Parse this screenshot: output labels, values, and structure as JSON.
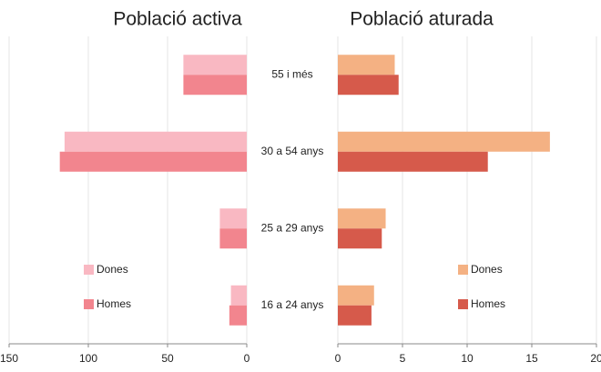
{
  "chart_data": [
    {
      "type": "bar",
      "orientation": "horizontal",
      "title": "Població activa",
      "reversed": true,
      "categories": [
        "55 i més",
        "30 a 54 anys",
        "25 a 29 anys",
        "16 a 24 anys"
      ],
      "series": [
        {
          "name": "Dones",
          "color": "#f9b8c2",
          "values": [
            40,
            115,
            17,
            10
          ]
        },
        {
          "name": "Homes",
          "color": "#f2858e",
          "values": [
            40,
            118,
            17,
            11
          ]
        }
      ],
      "xlim": [
        0,
        150
      ],
      "xticks": [
        150,
        100,
        50,
        0
      ],
      "grid": true,
      "legend": "lower left"
    },
    {
      "type": "bar",
      "orientation": "horizontal",
      "title": "Població aturada",
      "series": [
        {
          "name": "Dones",
          "color": "#f4b183",
          "values": [
            4.4,
            16.4,
            3.7,
            2.8
          ]
        },
        {
          "name": "Homes",
          "color": "#d65a4b",
          "values": [
            4.7,
            11.6,
            3.4,
            2.6
          ]
        }
      ],
      "xlim": [
        0,
        20
      ],
      "xticks": [
        0,
        5,
        10,
        15,
        20
      ],
      "grid": true,
      "legend": "lower center"
    }
  ]
}
